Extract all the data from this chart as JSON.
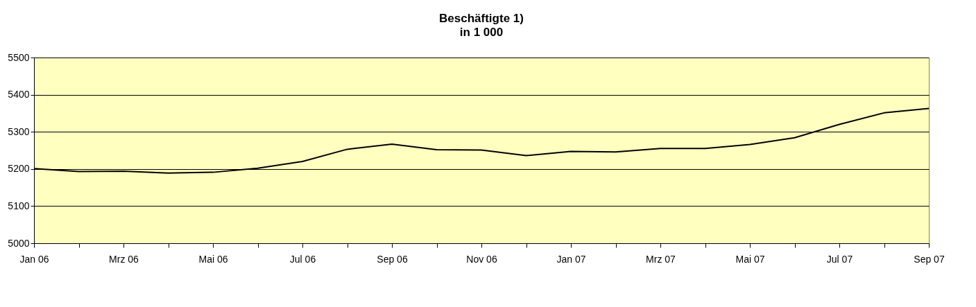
{
  "chart_data": {
    "type": "line",
    "title": "Beschäftigte 1)",
    "subtitle": "in 1 000",
    "categories": [
      "Jan 06",
      null,
      "Mrz 06",
      null,
      "Mai 06",
      null,
      "Jul 06",
      null,
      "Sep 06",
      null,
      "Nov 06",
      null,
      "Jan 07",
      null,
      "Mrz 07",
      null,
      "Mai 07",
      null,
      "Jul 07",
      null,
      "Sep 07"
    ],
    "series": [
      {
        "color": "#000000",
        "values": [
          5201,
          5193,
          5194,
          5189,
          5191,
          5202,
          5220,
          5253,
          5267,
          5252,
          5251,
          5236,
          5247,
          5246,
          5255,
          5255,
          5266,
          5284,
          5320,
          5351,
          5363
        ]
      }
    ],
    "ylim": [
      5000,
      5500
    ],
    "yticks": [
      5000,
      5100,
      5200,
      5300,
      5400,
      5500
    ],
    "grid": "y",
    "marker": "none",
    "line_style": "solid"
  }
}
